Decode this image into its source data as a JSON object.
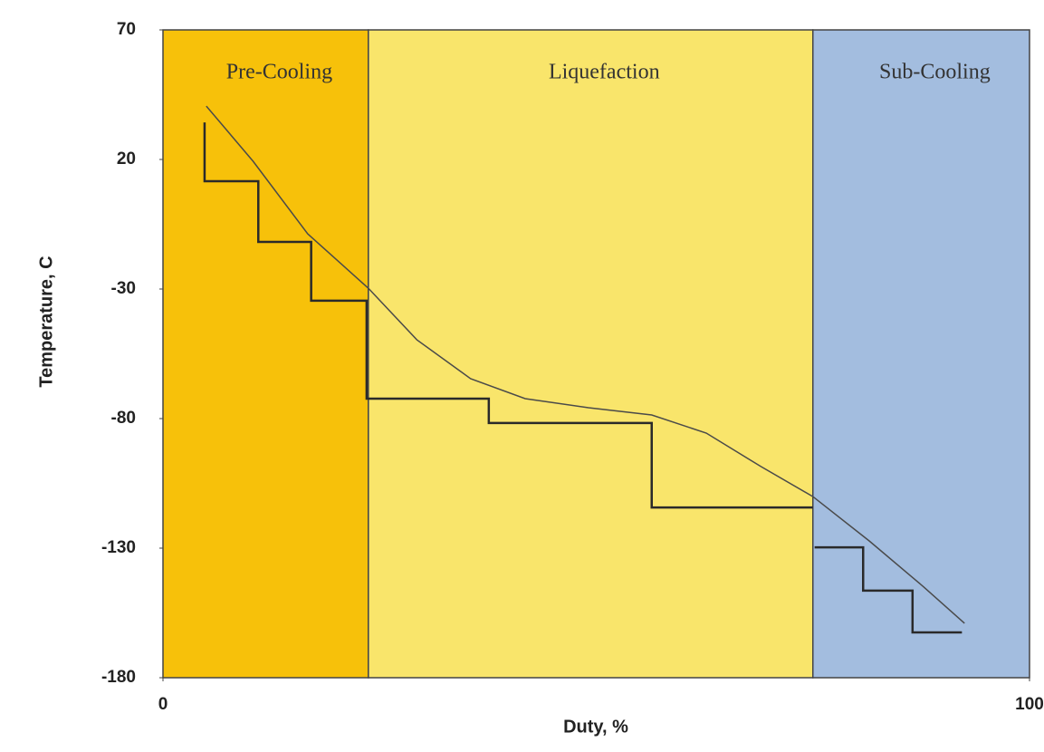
{
  "chart_data": {
    "type": "line",
    "xlabel": "Duty, %",
    "ylabel": "Temperature, C",
    "xlim": [
      0,
      100
    ],
    "xticks": [
      0,
      100
    ],
    "ylim": [
      -180,
      70
    ],
    "yticks": [
      70,
      20,
      -30,
      -80,
      -130,
      -180
    ],
    "regions": [
      {
        "label": "Pre-Cooling",
        "start": 0,
        "end": 23.7,
        "color": "#f7c10a"
      },
      {
        "label": "Liquefaction",
        "start": 23.7,
        "end": 75,
        "color": "#f9e56b"
      },
      {
        "label": "Sub-Cooling",
        "start": 75,
        "end": 100,
        "color": "#a3bddf"
      }
    ],
    "series": [
      {
        "color": "#4a4a4a",
        "width": 1.5,
        "x": [
          5.0,
          10.4,
          16.7,
          23.7,
          29.3,
          35.5,
          41.8,
          49.1,
          56.4,
          62.7,
          69.0,
          75.0,
          81.5,
          87.8,
          92.5
        ],
        "values": [
          40.6,
          19.3,
          -8.7,
          -29.7,
          -49.6,
          -64.6,
          -72.3,
          -75.8,
          -78.6,
          -85.6,
          -98.5,
          -110.1,
          -127.2,
          -145,
          -159
        ]
      },
      {
        "color": "#2a2a2a",
        "width": 2.5,
        "x": [
          4.8,
          4.8,
          11,
          11,
          17.1,
          17.1,
          23.5,
          23.5,
          37.6,
          37.6,
          56.4,
          56.4,
          75,
          75.1,
          75.2,
          80.8,
          80.8,
          86.5,
          86.5,
          92.2
        ],
        "values": [
          34.3,
          11.6,
          11.6,
          -11.8,
          -11.8,
          -34.5,
          -34.5,
          -72.3,
          -72.3,
          -81.7,
          -81.7,
          -114.3,
          -114.3,
          null,
          -129.7,
          -129.7,
          -146.4,
          -146.4,
          -162.5,
          -162.5
        ]
      }
    ]
  }
}
